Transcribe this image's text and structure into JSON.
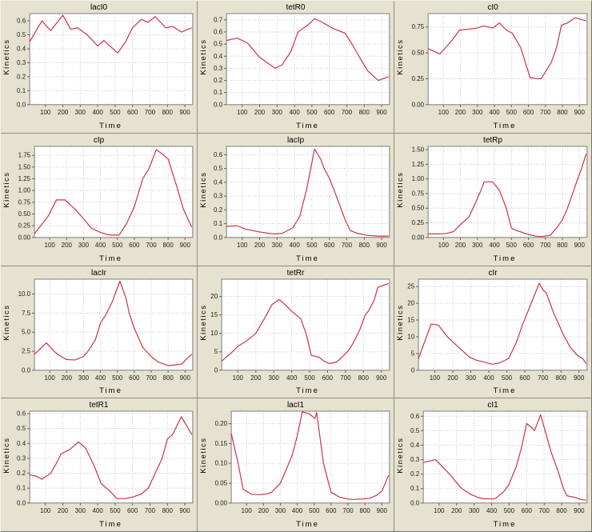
{
  "colors": {
    "background": "#e5e2cf",
    "plot_background": "#ffffff",
    "plot_border": "#7f7f7f",
    "grid": "#c9c9c9",
    "tick": "#555555",
    "series": "#cc3344",
    "divider": "#8e8e84"
  },
  "chart_data": [
    {
      "type": "line",
      "title": "lacI0",
      "xlabel": "Time",
      "ylabel": "Kinetics",
      "series_color": "#cc3344",
      "grid": true,
      "legend": "none",
      "xlim": [
        10,
        945
      ],
      "ylim": [
        0,
        0.652
      ],
      "xticks": [
        100,
        200,
        300,
        400,
        500,
        600,
        700,
        800,
        900
      ],
      "yticks": {
        "values": [
          0,
          0.1,
          0.2,
          0.3,
          0.4,
          0.5,
          0.6
        ],
        "labels": [
          "0.0",
          "0.1",
          "0.2",
          "0.3",
          "0.4",
          "0.5",
          "0.6"
        ]
      },
      "x": [
        10,
        80,
        130,
        200,
        245,
        285,
        340,
        400,
        435,
        515,
        560,
        600,
        650,
        690,
        730,
        790,
        830,
        880,
        940
      ],
      "y": [
        0.45,
        0.6,
        0.53,
        0.64,
        0.54,
        0.55,
        0.5,
        0.42,
        0.46,
        0.37,
        0.45,
        0.55,
        0.61,
        0.59,
        0.63,
        0.55,
        0.56,
        0.52,
        0.55
      ]
    },
    {
      "type": "line",
      "title": "tetR0",
      "xlabel": "Time",
      "ylabel": "Kinetics",
      "series_color": "#cc3344",
      "grid": true,
      "legend": "none",
      "xlim": [
        10,
        945
      ],
      "ylim": [
        0,
        0.752
      ],
      "xticks": [
        100,
        200,
        300,
        400,
        500,
        600,
        700,
        800,
        900
      ],
      "yticks": {
        "values": [
          0,
          0.1,
          0.2,
          0.3,
          0.4,
          0.5,
          0.6,
          0.7
        ],
        "labels": [
          "0.0",
          "0.1",
          "0.2",
          "0.3",
          "0.4",
          "0.5",
          "0.6",
          "0.7"
        ]
      },
      "x": [
        10,
        70,
        130,
        200,
        250,
        290,
        330,
        380,
        420,
        480,
        515,
        560,
        620,
        690,
        730,
        770,
        820,
        880,
        940
      ],
      "y": [
        0.53,
        0.55,
        0.51,
        0.39,
        0.34,
        0.3,
        0.33,
        0.44,
        0.6,
        0.66,
        0.71,
        0.68,
        0.63,
        0.59,
        0.5,
        0.4,
        0.28,
        0.2,
        0.23
      ]
    },
    {
      "type": "line",
      "title": "cI0",
      "xlabel": "Time",
      "ylabel": "Kinetics",
      "series_color": "#cc3344",
      "grid": true,
      "legend": "none",
      "xlim": [
        10,
        945
      ],
      "ylim": [
        0,
        0.88
      ],
      "xticks": [
        100,
        200,
        300,
        400,
        500,
        600,
        700,
        800,
        900
      ],
      "yticks": {
        "values": [
          0,
          0.25,
          0.5,
          0.75
        ],
        "labels": [
          "0.00",
          "0.25",
          "0.50",
          "0.75"
        ]
      },
      "x": [
        10,
        80,
        150,
        195,
        250,
        300,
        335,
        390,
        430,
        470,
        505,
        555,
        610,
        650,
        675,
        705,
        735,
        765,
        795,
        830,
        875,
        940
      ],
      "y": [
        0.54,
        0.49,
        0.62,
        0.72,
        0.73,
        0.74,
        0.76,
        0.74,
        0.79,
        0.72,
        0.69,
        0.55,
        0.26,
        0.25,
        0.25,
        0.33,
        0.41,
        0.55,
        0.77,
        0.79,
        0.84,
        0.81
      ]
    },
    {
      "type": "line",
      "title": "cIp",
      "xlabel": "Time",
      "ylabel": "Kinetics",
      "series_color": "#cc3344",
      "grid": true,
      "legend": "none",
      "xlim": [
        10,
        945
      ],
      "ylim": [
        0,
        1.94
      ],
      "xticks": [
        100,
        200,
        300,
        400,
        500,
        600,
        700,
        800,
        900
      ],
      "yticks": {
        "values": [
          0,
          0.25,
          0.5,
          0.75,
          1.0,
          1.25,
          1.5,
          1.75
        ],
        "labels": [
          "0.00",
          "0.25",
          "0.50",
          "0.75",
          "1.00",
          "1.25",
          "1.50",
          "1.75"
        ]
      },
      "x": [
        10,
        90,
        140,
        190,
        250,
        300,
        345,
        390,
        440,
        470,
        510,
        555,
        600,
        650,
        685,
        730,
        775,
        800,
        850,
        890,
        940
      ],
      "y": [
        0.08,
        0.45,
        0.8,
        0.8,
        0.6,
        0.4,
        0.2,
        0.12,
        0.06,
        0.05,
        0.05,
        0.3,
        0.65,
        1.25,
        1.45,
        1.87,
        1.75,
        1.67,
        1.1,
        0.6,
        0.22
      ]
    },
    {
      "type": "line",
      "title": "lacIp",
      "xlabel": "Time",
      "ylabel": "Kinetics",
      "series_color": "#cc3344",
      "grid": true,
      "legend": "none",
      "xlim": [
        10,
        945
      ],
      "ylim": [
        0,
        0.66
      ],
      "xticks": [
        100,
        200,
        300,
        400,
        500,
        600,
        700,
        800,
        900
      ],
      "yticks": {
        "values": [
          0,
          0.1,
          0.2,
          0.3,
          0.4,
          0.5,
          0.6
        ],
        "labels": [
          "0.0",
          "0.1",
          "0.2",
          "0.3",
          "0.4",
          "0.5",
          "0.6"
        ]
      },
      "x": [
        10,
        70,
        120,
        200,
        250,
        290,
        330,
        390,
        430,
        470,
        515,
        550,
        570,
        600,
        640,
        690,
        720,
        760,
        820,
        880,
        940
      ],
      "y": [
        0.08,
        0.085,
        0.06,
        0.04,
        0.03,
        0.025,
        0.03,
        0.07,
        0.15,
        0.35,
        0.64,
        0.57,
        0.5,
        0.43,
        0.3,
        0.13,
        0.05,
        0.03,
        0.015,
        0.01,
        0.01
      ]
    },
    {
      "type": "line",
      "title": "tetRp",
      "xlabel": "Time",
      "ylabel": "Kinetics",
      "series_color": "#cc3344",
      "grid": true,
      "legend": "none",
      "xlim": [
        10,
        945
      ],
      "ylim": [
        0,
        1.556
      ],
      "xticks": [
        100,
        200,
        300,
        400,
        500,
        600,
        700,
        800,
        900
      ],
      "yticks": {
        "values": [
          0,
          0.25,
          0.5,
          0.75,
          1.0,
          1.25,
          1.5
        ],
        "labels": [
          "0.00",
          "0.25",
          "0.50",
          "0.75",
          "1.00",
          "1.25",
          "1.50"
        ]
      },
      "x": [
        10,
        80,
        120,
        160,
        200,
        250,
        290,
        320,
        340,
        390,
        430,
        470,
        500,
        520,
        570,
        600,
        650,
        680,
        730,
        770,
        800,
        830,
        860,
        890,
        915,
        940
      ],
      "y": [
        0.06,
        0.06,
        0.07,
        0.1,
        0.22,
        0.35,
        0.6,
        0.8,
        0.95,
        0.95,
        0.8,
        0.5,
        0.16,
        0.13,
        0.08,
        0.05,
        0.02,
        0.015,
        0.04,
        0.18,
        0.3,
        0.5,
        0.75,
        1.0,
        1.2,
        1.43
      ]
    },
    {
      "type": "line",
      "title": "lacIr",
      "xlabel": "Time",
      "ylabel": "Kinetics",
      "series_color": "#cc3344",
      "grid": true,
      "legend": "none",
      "xlim": [
        10,
        945
      ],
      "ylim": [
        0,
        11.95
      ],
      "xticks": [
        100,
        200,
        300,
        400,
        500,
        600,
        700,
        800,
        900
      ],
      "yticks": {
        "values": [
          0,
          2.5,
          5,
          7.5,
          10
        ],
        "labels": [
          "0.0",
          "2.5",
          "5.0",
          "7.5",
          "10.0"
        ]
      },
      "x": [
        10,
        80,
        130,
        160,
        200,
        250,
        300,
        330,
        370,
        400,
        430,
        470,
        515,
        550,
        570,
        600,
        650,
        700,
        740,
        800,
        840,
        880,
        910,
        940
      ],
      "y": [
        2.1,
        3.6,
        2.4,
        1.9,
        1.4,
        1.35,
        1.8,
        2.6,
        4.0,
        6.2,
        7.2,
        9.0,
        11.7,
        9.5,
        7.5,
        5.5,
        3.0,
        1.8,
        1.1,
        0.6,
        0.7,
        0.8,
        1.5,
        2.1
      ]
    },
    {
      "type": "line",
      "title": "tetRr",
      "xlabel": "Time",
      "ylabel": "Kinetics",
      "series_color": "#cc3344",
      "grid": true,
      "legend": "none",
      "xlim": [
        10,
        945
      ],
      "ylim": [
        0,
        24.7
      ],
      "xticks": [
        100,
        200,
        300,
        400,
        500,
        600,
        700,
        800,
        900
      ],
      "yticks": {
        "values": [
          0,
          5,
          10,
          15,
          20
        ],
        "labels": [
          "0",
          "5",
          "10",
          "15",
          "20"
        ]
      },
      "x": [
        10,
        70,
        100,
        150,
        200,
        230,
        260,
        290,
        330,
        370,
        400,
        450,
        480,
        510,
        550,
        580,
        610,
        650,
        680,
        720,
        750,
        780,
        810,
        830,
        860,
        880,
        910,
        940
      ],
      "y": [
        2.5,
        5,
        6.5,
        8,
        10,
        12.5,
        15,
        17.8,
        19.2,
        17.5,
        16,
        14,
        10,
        4,
        3.6,
        2.5,
        1.8,
        2.2,
        3.5,
        5.5,
        8,
        11,
        15,
        16.2,
        19,
        22.5,
        23,
        23.5
      ]
    },
    {
      "type": "line",
      "title": "cIr",
      "xlabel": "Time",
      "ylabel": "Kinetics",
      "series_color": "#cc3344",
      "grid": true,
      "legend": "none",
      "xlim": [
        10,
        945
      ],
      "ylim": [
        0,
        27.2
      ],
      "xticks": [
        100,
        200,
        300,
        400,
        500,
        600,
        700,
        800,
        900
      ],
      "yticks": {
        "values": [
          0,
          5,
          10,
          15,
          20,
          25
        ],
        "labels": [
          "0",
          "5",
          "10",
          "15",
          "20",
          "25"
        ]
      },
      "x": [
        10,
        80,
        120,
        170,
        200,
        240,
        270,
        290,
        330,
        370,
        420,
        460,
        510,
        550,
        590,
        620,
        650,
        680,
        700,
        720,
        760,
        790,
        810,
        850,
        890,
        920,
        940
      ],
      "y": [
        3.5,
        13.8,
        13.5,
        10,
        8.5,
        6.5,
        5,
        4,
        3,
        2.5,
        1.8,
        2.2,
        3.5,
        8,
        14,
        18,
        22,
        26,
        24,
        23,
        17,
        13.5,
        11,
        7,
        4.5,
        3.5,
        2
      ]
    },
    {
      "type": "line",
      "title": "tetR1",
      "xlabel": "Time",
      "ylabel": "Kinetics",
      "series_color": "#cc3344",
      "grid": true,
      "legend": "none",
      "xlim": [
        10,
        945
      ],
      "ylim": [
        0,
        0.617
      ],
      "xticks": [
        100,
        200,
        300,
        400,
        500,
        600,
        700,
        800,
        900
      ],
      "yticks": {
        "values": [
          0,
          0.1,
          0.2,
          0.3,
          0.4,
          0.5,
          0.6
        ],
        "labels": [
          "0.0",
          "0.1",
          "0.2",
          "0.3",
          "0.4",
          "0.5",
          "0.6"
        ]
      },
      "x": [
        10,
        50,
        80,
        130,
        160,
        190,
        240,
        290,
        330,
        380,
        420,
        470,
        510,
        560,
        600,
        650,
        690,
        730,
        770,
        800,
        830,
        880,
        910,
        940
      ],
      "y": [
        0.19,
        0.18,
        0.16,
        0.2,
        0.26,
        0.33,
        0.36,
        0.41,
        0.37,
        0.25,
        0.13,
        0.08,
        0.03,
        0.03,
        0.04,
        0.06,
        0.1,
        0.2,
        0.3,
        0.43,
        0.46,
        0.58,
        0.52,
        0.46
      ]
    },
    {
      "type": "line",
      "title": "lacI1",
      "xlabel": "Time",
      "ylabel": "Kinetics",
      "series_color": "#cc3344",
      "grid": true,
      "legend": "none",
      "xlim": [
        10,
        945
      ],
      "ylim": [
        0,
        0.2316
      ],
      "xticks": [
        100,
        200,
        300,
        400,
        500,
        600,
        700,
        800,
        900
      ],
      "yticks": {
        "values": [
          0,
          0.05,
          0.1,
          0.15,
          0.2
        ],
        "labels": [
          "0.00",
          "0.05",
          "0.10",
          "0.15",
          "0.20"
        ]
      },
      "x": [
        10,
        50,
        80,
        130,
        180,
        230,
        250,
        300,
        330,
        370,
        400,
        430,
        470,
        505,
        515,
        555,
        600,
        650,
        700,
        730,
        780,
        830,
        870,
        900,
        940
      ],
      "y": [
        0.175,
        0.1,
        0.035,
        0.022,
        0.021,
        0.024,
        0.028,
        0.05,
        0.08,
        0.12,
        0.17,
        0.23,
        0.225,
        0.213,
        0.228,
        0.1,
        0.027,
        0.015,
        0.01,
        0.009,
        0.01,
        0.012,
        0.02,
        0.03,
        0.07
      ]
    },
    {
      "type": "line",
      "title": "cI1",
      "xlabel": "Time",
      "ylabel": "Kinetics",
      "series_color": "#cc3344",
      "grid": true,
      "legend": "none",
      "xlim": [
        10,
        945
      ],
      "ylim": [
        0,
        0.635
      ],
      "xticks": [
        100,
        200,
        300,
        400,
        500,
        600,
        700,
        800,
        900
      ],
      "yticks": {
        "values": [
          0,
          0.1,
          0.2,
          0.3,
          0.4,
          0.5,
          0.6
        ],
        "labels": [
          "0.0",
          "0.1",
          "0.2",
          "0.3",
          "0.4",
          "0.5",
          "0.6"
        ]
      },
      "x": [
        10,
        80,
        120,
        160,
        200,
        230,
        280,
        320,
        350,
        400,
        420,
        470,
        500,
        540,
        570,
        600,
        630,
        645,
        680,
        710,
        740,
        780,
        810,
        830,
        870,
        910,
        940
      ],
      "y": [
        0.28,
        0.3,
        0.25,
        0.2,
        0.14,
        0.1,
        0.06,
        0.04,
        0.03,
        0.028,
        0.03,
        0.08,
        0.13,
        0.25,
        0.38,
        0.55,
        0.52,
        0.5,
        0.61,
        0.48,
        0.35,
        0.22,
        0.1,
        0.05,
        0.04,
        0.025,
        0.02
      ]
    }
  ]
}
